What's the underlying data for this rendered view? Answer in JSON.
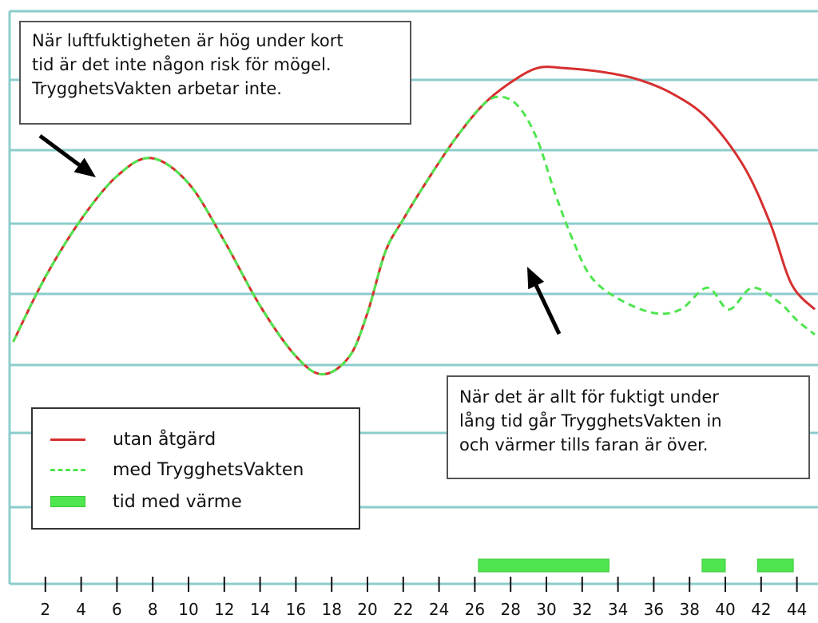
{
  "chart_data": {
    "type": "line",
    "title": "",
    "xlabel": "",
    "ylabel": "",
    "x_ticks": [
      "2",
      "4",
      "6",
      "8",
      "10",
      "12",
      "14",
      "16",
      "18",
      "20",
      "22",
      "24",
      "26",
      "28",
      "30",
      "32",
      "34",
      "36",
      "38",
      "40",
      "42",
      "44"
    ],
    "xlim": [
      0,
      45
    ],
    "grid": true,
    "series": [
      {
        "name": "utan åtgärd",
        "style": "solid",
        "color": "#d62f2f",
        "points": [
          [
            0.2,
            0.04
          ],
          [
            2,
            0.22
          ],
          [
            4,
            0.38
          ],
          [
            6,
            0.5
          ],
          [
            7.9,
            0.55
          ],
          [
            10,
            0.48
          ],
          [
            12,
            0.32
          ],
          [
            14,
            0.14
          ],
          [
            16,
            0.0
          ],
          [
            17.5,
            -0.05
          ],
          [
            19,
            0.0
          ],
          [
            20,
            0.12
          ],
          [
            21,
            0.29
          ],
          [
            22,
            0.38
          ],
          [
            23.5,
            0.5
          ],
          [
            25,
            0.61
          ],
          [
            26.5,
            0.7
          ],
          [
            28,
            0.76
          ],
          [
            29.5,
            0.8
          ],
          [
            31,
            0.8
          ],
          [
            33,
            0.79
          ],
          [
            35,
            0.77
          ],
          [
            37,
            0.73
          ],
          [
            39,
            0.66
          ],
          [
            41,
            0.53
          ],
          [
            42.5,
            0.37
          ],
          [
            43.7,
            0.2
          ],
          [
            45,
            0.13
          ]
        ]
      },
      {
        "name": "med TrygghetsVakten",
        "style": "dashed",
        "color": "#4fe54f",
        "points": [
          [
            0.2,
            0.04
          ],
          [
            2,
            0.22
          ],
          [
            4,
            0.38
          ],
          [
            6,
            0.5
          ],
          [
            7.9,
            0.55
          ],
          [
            10,
            0.48
          ],
          [
            12,
            0.32
          ],
          [
            14,
            0.14
          ],
          [
            16,
            0.0
          ],
          [
            17.5,
            -0.05
          ],
          [
            19,
            0.0
          ],
          [
            20,
            0.12
          ],
          [
            21,
            0.29
          ],
          [
            22,
            0.38
          ],
          [
            23.5,
            0.5
          ],
          [
            25,
            0.61
          ],
          [
            26.5,
            0.7
          ],
          [
            27.5,
            0.72
          ],
          [
            28.5,
            0.69
          ],
          [
            29.5,
            0.6
          ],
          [
            30.5,
            0.45
          ],
          [
            31.5,
            0.32
          ],
          [
            32.5,
            0.22
          ],
          [
            34,
            0.16
          ],
          [
            36,
            0.12
          ],
          [
            37.5,
            0.13
          ],
          [
            39,
            0.19
          ],
          [
            40.2,
            0.13
          ],
          [
            41.5,
            0.19
          ],
          [
            43,
            0.15
          ],
          [
            44,
            0.1
          ],
          [
            45,
            0.06
          ]
        ]
      }
    ],
    "heating_periods": [
      [
        26.2,
        33.5
      ],
      [
        38.7,
        40.0
      ],
      [
        41.8,
        43.8
      ]
    ],
    "heating_label": "tid med värme",
    "legend_position": "bottom-left"
  },
  "callouts": {
    "top": "När luftfuktigheten är hög under kort\ntid är det inte någon risk för mögel.\nTrygghetsVakten arbetar inte.",
    "bottom": "När det är allt för fuktigt under\nlång tid går TrygghetsVakten in\noch värmer tills faran är över."
  },
  "legend": {
    "red_label": "utan åtgärd",
    "green_label": "med TrygghetsVakten",
    "bar_label": "tid med värme"
  },
  "colors": {
    "grid": "#8ccccc",
    "red": "#d62f2f",
    "green": "#4fe54f"
  }
}
